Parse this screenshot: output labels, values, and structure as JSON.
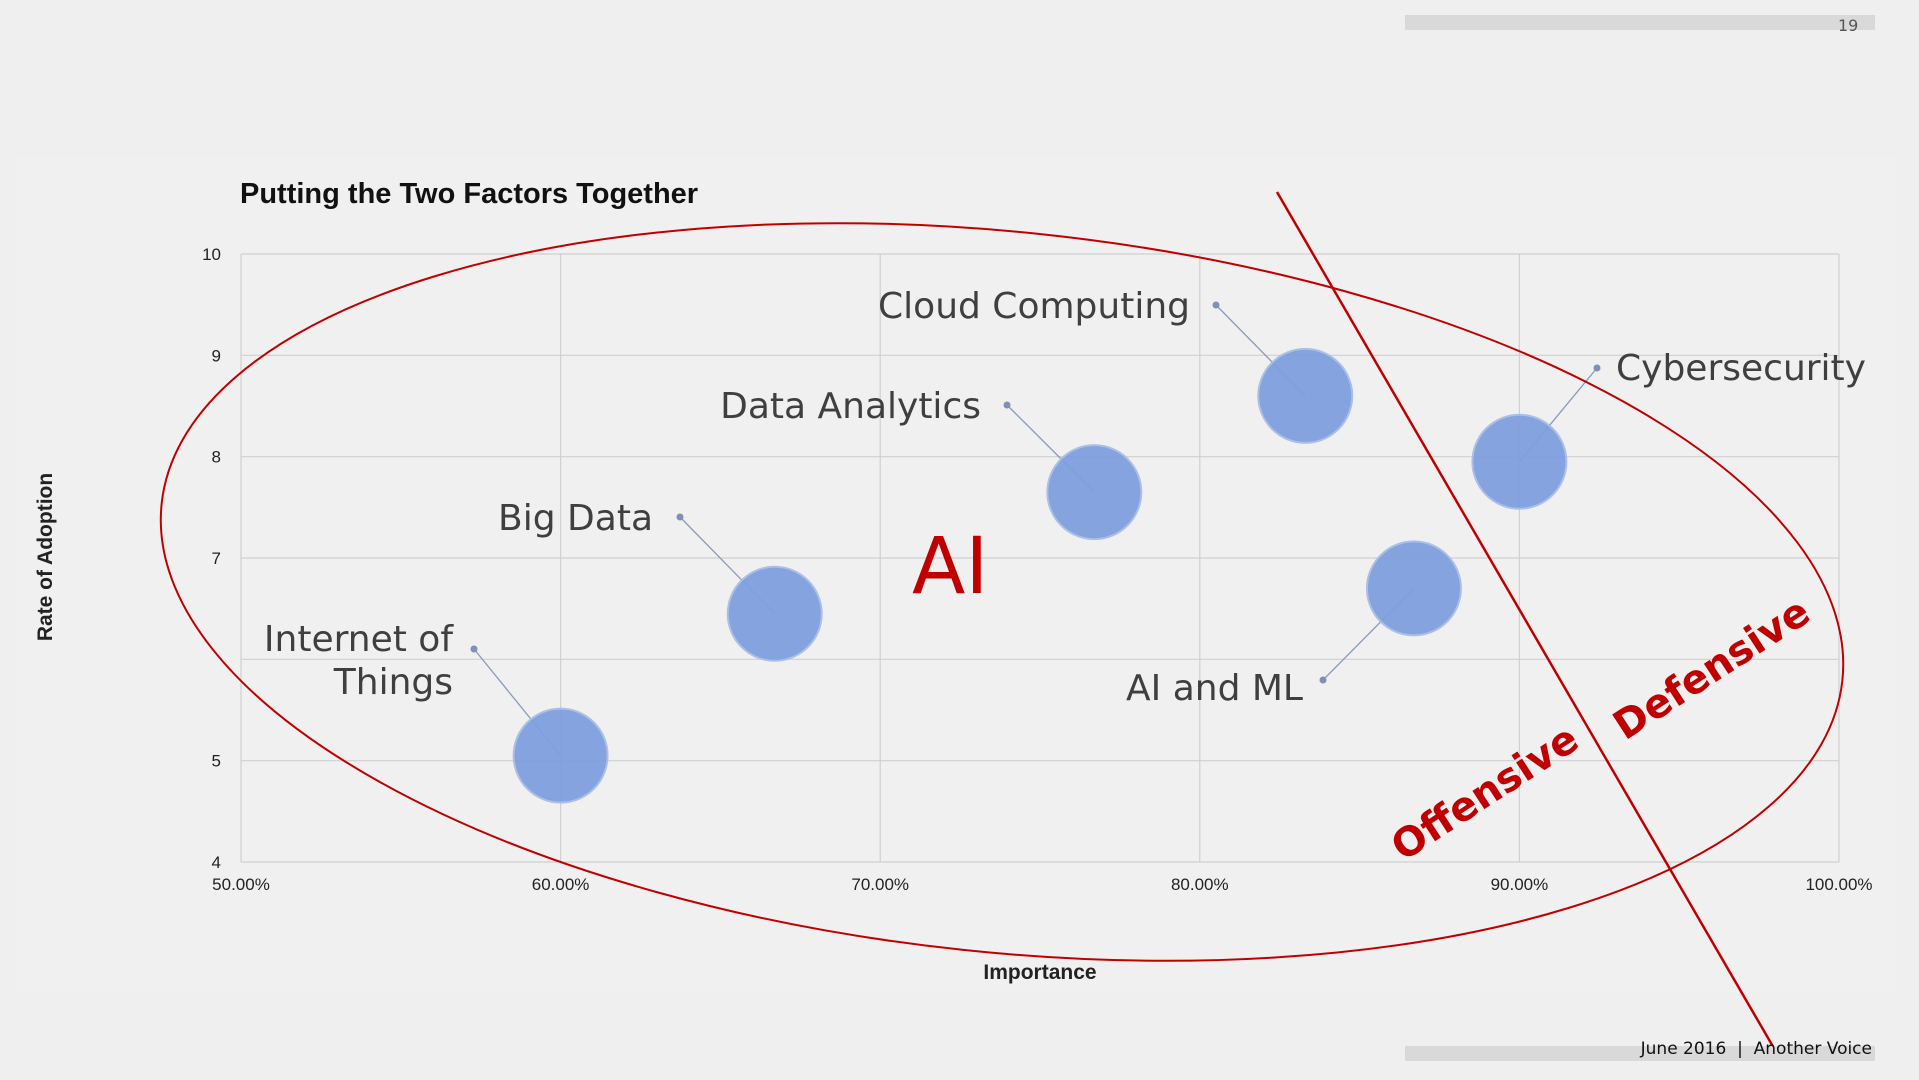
{
  "page_number": "19",
  "footer": "June 2016  |  Another Voice",
  "annotations": {
    "ai": "AI",
    "offensive": "Offensive",
    "defensive": "Defensive"
  },
  "colors": {
    "bubble": "#7f9fdf",
    "annotation": "#c00000",
    "grid": "#d0d0d0"
  },
  "chart_data": {
    "type": "scatter",
    "title": "Putting the Two Factors Together",
    "xlabel": "Importance",
    "ylabel": "Rate of Adoption",
    "xlim": [
      0.5,
      1.0
    ],
    "ylim": [
      4,
      10
    ],
    "x_ticks": [
      "50.00%",
      "60.00%",
      "70.00%",
      "80.00%",
      "90.00%",
      "100.00%"
    ],
    "y_ticks": [
      "4",
      "5",
      "7",
      "8",
      "9",
      "10"
    ],
    "grid": true,
    "points": [
      {
        "label": "Internet of Things",
        "x": 0.6,
        "y": 5.05
      },
      {
        "label": "Big Data",
        "x": 0.667,
        "y": 6.45
      },
      {
        "label": "Data Analytics",
        "x": 0.767,
        "y": 7.65
      },
      {
        "label": "Cloud Computing",
        "x": 0.833,
        "y": 8.6
      },
      {
        "label": "AI and ML",
        "x": 0.867,
        "y": 6.7
      },
      {
        "label": "Cybersecurity",
        "x": 0.9,
        "y": 7.95
      }
    ]
  }
}
